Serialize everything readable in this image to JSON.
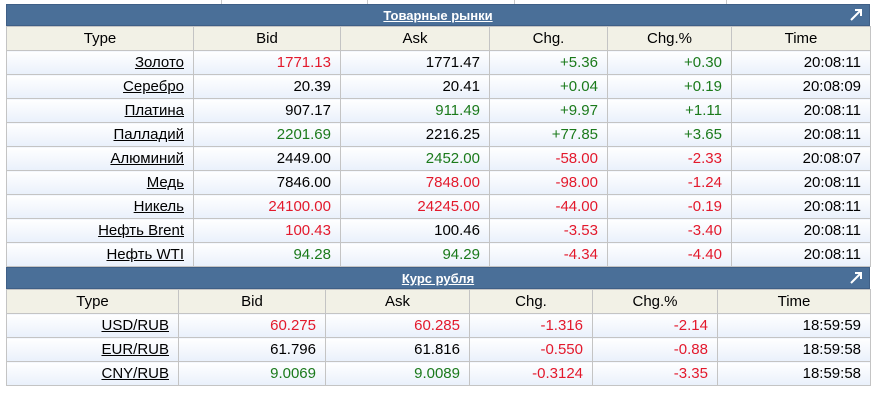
{
  "commodities": {
    "title": "Товарные рынки",
    "headers": [
      "Type",
      "Bid",
      "Ask",
      "Chg.",
      "Chg.%",
      "Time"
    ],
    "rows": [
      {
        "type": "Золото",
        "bid": "1771.13",
        "bid_c": "neg",
        "ask": "1771.47",
        "ask_c": "neu",
        "chg": "+5.36",
        "chg_c": "pos",
        "pct": "+0.30",
        "pct_c": "pos",
        "time": "20:08:11"
      },
      {
        "type": "Серебро",
        "bid": "20.39",
        "bid_c": "neu",
        "ask": "20.41",
        "ask_c": "neu",
        "chg": "+0.04",
        "chg_c": "pos",
        "pct": "+0.19",
        "pct_c": "pos",
        "time": "20:08:09"
      },
      {
        "type": "Платина",
        "bid": "907.17",
        "bid_c": "neu",
        "ask": "911.49",
        "ask_c": "pos",
        "chg": "+9.97",
        "chg_c": "pos",
        "pct": "+1.11",
        "pct_c": "pos",
        "time": "20:08:11"
      },
      {
        "type": "Палладий",
        "bid": "2201.69",
        "bid_c": "pos",
        "ask": "2216.25",
        "ask_c": "neu",
        "chg": "+77.85",
        "chg_c": "pos",
        "pct": "+3.65",
        "pct_c": "pos",
        "time": "20:08:11"
      },
      {
        "type": "Алюминий",
        "bid": "2449.00",
        "bid_c": "neu",
        "ask": "2452.00",
        "ask_c": "pos",
        "chg": "-58.00",
        "chg_c": "neg",
        "pct": "-2.33",
        "pct_c": "neg",
        "time": "20:08:07"
      },
      {
        "type": "Медь",
        "bid": "7846.00",
        "bid_c": "neu",
        "ask": "7848.00",
        "ask_c": "neg",
        "chg": "-98.00",
        "chg_c": "neg",
        "pct": "-1.24",
        "pct_c": "neg",
        "time": "20:08:11"
      },
      {
        "type": "Никель",
        "bid": "24100.00",
        "bid_c": "neg",
        "ask": "24245.00",
        "ask_c": "neg",
        "chg": "-44.00",
        "chg_c": "neg",
        "pct": "-0.19",
        "pct_c": "neg",
        "time": "20:08:11"
      },
      {
        "type": "Нефть Brent",
        "bid": "100.43",
        "bid_c": "neg",
        "ask": "100.46",
        "ask_c": "neu",
        "chg": "-3.53",
        "chg_c": "neg",
        "pct": "-3.40",
        "pct_c": "neg",
        "time": "20:08:11"
      },
      {
        "type": "Нефть WTI",
        "bid": "94.28",
        "bid_c": "pos",
        "ask": "94.29",
        "ask_c": "pos",
        "chg": "-4.34",
        "chg_c": "neg",
        "pct": "-4.40",
        "pct_c": "neg",
        "time": "20:08:11"
      }
    ]
  },
  "rub": {
    "title": "Курс рубля",
    "headers": [
      "Type",
      "Bid",
      "Ask",
      "Chg.",
      "Chg.%",
      "Time"
    ],
    "rows": [
      {
        "type": "USD/RUB",
        "bid": "60.275",
        "bid_c": "neg",
        "ask": "60.285",
        "ask_c": "neg",
        "chg": "-1.316",
        "chg_c": "neg",
        "pct": "-2.14",
        "pct_c": "neg",
        "time": "18:59:59"
      },
      {
        "type": "EUR/RUB",
        "bid": "61.796",
        "bid_c": "neu",
        "ask": "61.816",
        "ask_c": "neu",
        "chg": "-0.550",
        "chg_c": "neg",
        "pct": "-0.88",
        "pct_c": "neg",
        "time": "18:59:58"
      },
      {
        "type": "CNY/RUB",
        "bid": "9.0069",
        "bid_c": "pos",
        "ask": "9.0089",
        "ask_c": "pos",
        "chg": "-0.3124",
        "chg_c": "neg",
        "pct": "-3.35",
        "pct_c": "neg",
        "time": "18:59:58"
      }
    ]
  },
  "colors": {
    "header_bar": "#4a6f98",
    "pos": "#1b7a1b",
    "neg": "#e3192c",
    "col_header_bg": "#f2f1e6"
  },
  "icons": {
    "expand": "expand-arrow-icon"
  }
}
